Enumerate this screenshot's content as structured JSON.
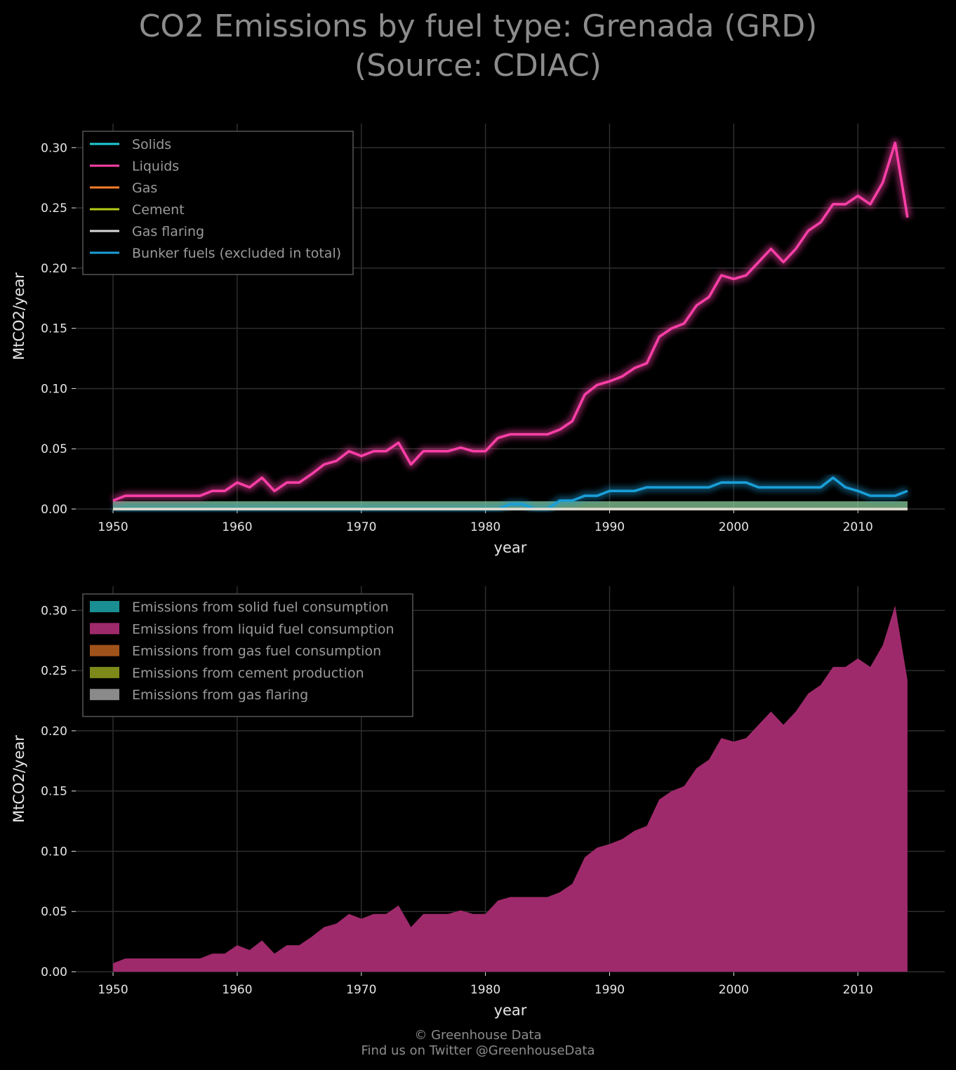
{
  "title": {
    "line1": "CO2 Emissions by fuel type: Grenada (GRD)",
    "line2": "(Source: CDIAC)"
  },
  "footer": {
    "line1": "© Greenhouse Data",
    "line2": "Find us on Twitter @GreenhouseData"
  },
  "colors": {
    "background": "#000000",
    "grid": "#2e2e2e",
    "solids": "#1ecbd6",
    "liquids": "#ff3fa8",
    "gas": "#ff7f2a",
    "cement": "#b5cc18",
    "gas_flaring": "#d9d9d9",
    "bunker": "#1a9fd9",
    "area_solid": "#1a8f93",
    "area_liquid": "#9e2a6b",
    "area_gas": "#a0521b",
    "area_cement": "#7d8a1a",
    "area_flaring": "#8a8a8a"
  },
  "chart_data": [
    {
      "type": "line",
      "xlabel": "year",
      "ylabel": "MtCO2/year",
      "xlim": [
        1947,
        2017
      ],
      "ylim": [
        0,
        0.32
      ],
      "xticks": [
        1950,
        1960,
        1970,
        1980,
        1990,
        2000,
        2010
      ],
      "yticks": [
        "0.00",
        "0.05",
        "0.10",
        "0.15",
        "0.20",
        "0.25",
        "0.30"
      ],
      "grid": true,
      "legend_position": "top-left",
      "x": [
        1950,
        1951,
        1952,
        1953,
        1954,
        1955,
        1956,
        1957,
        1958,
        1959,
        1960,
        1961,
        1962,
        1963,
        1964,
        1965,
        1966,
        1967,
        1968,
        1969,
        1970,
        1971,
        1972,
        1973,
        1974,
        1975,
        1976,
        1977,
        1978,
        1979,
        1980,
        1981,
        1982,
        1983,
        1984,
        1985,
        1986,
        1987,
        1988,
        1989,
        1990,
        1991,
        1992,
        1993,
        1994,
        1995,
        1996,
        1997,
        1998,
        1999,
        2000,
        2001,
        2002,
        2003,
        2004,
        2005,
        2006,
        2007,
        2008,
        2009,
        2010,
        2011,
        2012,
        2013,
        2014
      ],
      "series": [
        {
          "name": "Solids",
          "color_key": "solids",
          "values": [
            0,
            0,
            0,
            0,
            0,
            0,
            0,
            0,
            0,
            0,
            0,
            0,
            0,
            0,
            0,
            0,
            0,
            0,
            0,
            0,
            0,
            0,
            0,
            0,
            0,
            0,
            0,
            0,
            0,
            0,
            0,
            0,
            0,
            0,
            0,
            0,
            0,
            0,
            0,
            0,
            0,
            0,
            0,
            0,
            0,
            0,
            0,
            0,
            0,
            0,
            0,
            0,
            0,
            0,
            0,
            0,
            0,
            0,
            0,
            0,
            0,
            0,
            0,
            0,
            0
          ]
        },
        {
          "name": "Liquids",
          "color_key": "liquids",
          "values": [
            0.007,
            0.011,
            0.011,
            0.011,
            0.011,
            0.011,
            0.011,
            0.011,
            0.015,
            0.015,
            0.022,
            0.018,
            0.026,
            0.015,
            0.022,
            0.022,
            0.029,
            0.037,
            0.04,
            0.048,
            0.044,
            0.048,
            0.048,
            0.055,
            0.037,
            0.048,
            0.048,
            0.048,
            0.051,
            0.048,
            0.048,
            0.059,
            0.062,
            0.062,
            0.062,
            0.062,
            0.066,
            0.073,
            0.095,
            0.103,
            0.106,
            0.11,
            0.117,
            0.121,
            0.143,
            0.15,
            0.154,
            0.169,
            0.176,
            0.194,
            0.191,
            0.194,
            0.205,
            0.216,
            0.205,
            0.216,
            0.231,
            0.238,
            0.253,
            0.253,
            0.26,
            0.253,
            0.271,
            0.304,
            0.242
          ]
        },
        {
          "name": "Gas",
          "color_key": "gas",
          "values": [
            0,
            0,
            0,
            0,
            0,
            0,
            0,
            0,
            0,
            0,
            0,
            0,
            0,
            0,
            0,
            0,
            0,
            0,
            0,
            0,
            0,
            0,
            0,
            0,
            0,
            0,
            0,
            0,
            0,
            0,
            0,
            0,
            0,
            0,
            0,
            0,
            0,
            0,
            0,
            0,
            0,
            0,
            0,
            0,
            0,
            0,
            0,
            0,
            0,
            0,
            0,
            0,
            0,
            0,
            0,
            0,
            0,
            0,
            0,
            0,
            0,
            0,
            0,
            0,
            0
          ]
        },
        {
          "name": "Cement",
          "color_key": "cement",
          "values": [
            0,
            0,
            0,
            0,
            0,
            0,
            0,
            0,
            0,
            0,
            0,
            0,
            0,
            0,
            0,
            0,
            0,
            0,
            0,
            0,
            0,
            0,
            0,
            0,
            0,
            0,
            0,
            0,
            0,
            0,
            0,
            0,
            0,
            0,
            0,
            0,
            0,
            0,
            0,
            0,
            0,
            0,
            0,
            0,
            0,
            0,
            0,
            0,
            0,
            0,
            0,
            0,
            0,
            0,
            0,
            0,
            0,
            0,
            0,
            0,
            0,
            0,
            0,
            0,
            0
          ]
        },
        {
          "name": "Gas flaring",
          "color_key": "gas_flaring",
          "values": [
            0,
            0,
            0,
            0,
            0,
            0,
            0,
            0,
            0,
            0,
            0,
            0,
            0,
            0,
            0,
            0,
            0,
            0,
            0,
            0,
            0,
            0,
            0,
            0,
            0,
            0,
            0,
            0,
            0,
            0,
            0,
            0,
            0,
            0,
            0,
            0,
            0,
            0,
            0,
            0,
            0,
            0,
            0,
            0,
            0,
            0,
            0,
            0,
            0,
            0,
            0,
            0,
            0,
            0,
            0,
            0,
            0,
            0,
            0,
            0,
            0,
            0,
            0,
            0,
            0
          ]
        },
        {
          "name": "Bunker fuels (excluded in total)",
          "color_key": "bunker",
          "values": [
            0,
            0,
            0,
            0,
            0,
            0,
            0,
            0,
            0,
            0,
            0,
            0,
            0,
            0,
            0,
            0,
            0,
            0,
            0,
            0,
            0,
            0,
            0,
            0,
            0,
            0,
            0,
            0,
            0,
            0,
            0,
            0,
            0.004,
            0.004,
            0,
            0,
            0.007,
            0.007,
            0.011,
            0.011,
            0.015,
            0.015,
            0.015,
            0.018,
            0.018,
            0.018,
            0.018,
            0.018,
            0.018,
            0.022,
            0.022,
            0.022,
            0.018,
            0.018,
            0.018,
            0.018,
            0.018,
            0.018,
            0.026,
            0.018,
            0.015,
            0.011,
            0.011,
            0.011,
            0.015
          ]
        }
      ]
    },
    {
      "type": "area",
      "xlabel": "year",
      "ylabel": "MtCO2/year",
      "xlim": [
        1947,
        2017
      ],
      "ylim": [
        0,
        0.32
      ],
      "xticks": [
        1950,
        1960,
        1970,
        1980,
        1990,
        2000,
        2010
      ],
      "yticks": [
        "0.00",
        "0.05",
        "0.10",
        "0.15",
        "0.20",
        "0.25",
        "0.30"
      ],
      "grid": true,
      "legend_position": "top-left",
      "stacked": true,
      "series": [
        {
          "name": "Emissions from solid fuel consumption",
          "color_key": "area_solid",
          "ref": 0
        },
        {
          "name": "Emissions from liquid fuel consumption",
          "color_key": "area_liquid",
          "ref": 1
        },
        {
          "name": "Emissions from gas fuel consumption",
          "color_key": "area_gas",
          "ref": 2
        },
        {
          "name": "Emissions from cement production",
          "color_key": "area_cement",
          "ref": 3
        },
        {
          "name": "Emissions from gas flaring",
          "color_key": "area_flaring",
          "ref": 4
        }
      ]
    }
  ]
}
